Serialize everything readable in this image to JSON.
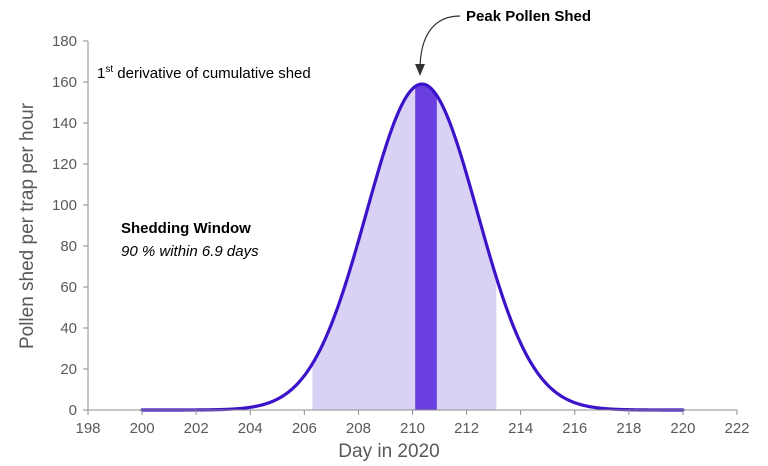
{
  "chart_data": {
    "type": "line",
    "title": "",
    "xlabel": "Day in 2020",
    "ylabel": "Pollen shed per trap per hour",
    "xlim": [
      198,
      222
    ],
    "ylim": [
      0,
      180
    ],
    "xticks": [
      198,
      200,
      202,
      204,
      206,
      208,
      210,
      212,
      214,
      216,
      218,
      220,
      222
    ],
    "yticks": [
      0,
      20,
      40,
      60,
      80,
      100,
      120,
      140,
      160,
      180
    ],
    "grid": false,
    "series": [
      {
        "name": "",
        "curve": "gaussian",
        "peak_day": 210.35,
        "peak_value": 159,
        "sigma_days": 2.05,
        "x_range": [
          200,
          220
        ]
      }
    ],
    "shaded_regions": [
      {
        "name": "Shedding Window",
        "x_start": 206.3,
        "x_end": 213.1,
        "color": "#d9d2f5"
      },
      {
        "name": "Peak Pollen Shed",
        "x_start": 210.1,
        "x_end": 210.9,
        "color": "#6a3fe0"
      }
    ],
    "line_color": "#3c13c9",
    "annotations": {
      "subtitle_main": "1",
      "subtitle_sup": "st",
      "subtitle_rest": " derivative of cumulative shed",
      "window_title": "Shedding Window",
      "window_detail": "90 % within 6.9 days",
      "peak_label": "Peak Pollen Shed"
    }
  }
}
